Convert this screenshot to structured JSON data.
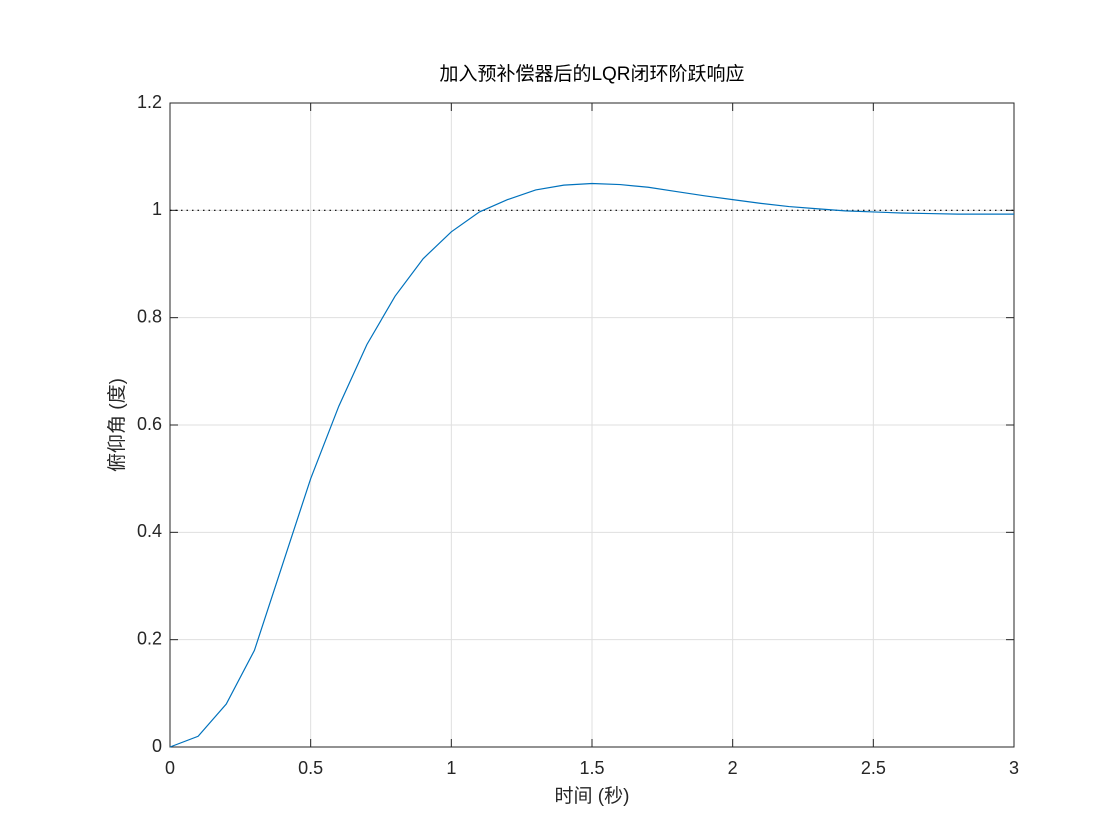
{
  "chart_data": {
    "type": "line",
    "title": "加入预补偿器后的LQR闭环阶跃响应",
    "x_label": "时间 (秒)",
    "y_label": "俯仰角 (度)",
    "x": [
      0,
      0.1,
      0.2,
      0.3,
      0.4,
      0.5,
      0.6,
      0.7,
      0.8,
      0.9,
      1.0,
      1.1,
      1.2,
      1.3,
      1.4,
      1.5,
      1.6,
      1.7,
      1.8,
      1.9,
      2.0,
      2.1,
      2.2,
      2.3,
      2.4,
      2.5,
      2.6,
      2.7,
      2.8,
      2.9,
      3.0
    ],
    "series": [
      {
        "color": "#0072bd",
        "values": [
          0,
          0.02,
          0.08,
          0.18,
          0.34,
          0.5,
          0.635,
          0.75,
          0.84,
          0.91,
          0.96,
          0.997,
          1.02,
          1.038,
          1.047,
          1.05,
          1.048,
          1.043,
          1.035,
          1.027,
          1.02,
          1.013,
          1.007,
          1.003,
          0.999,
          0.997,
          0.995,
          0.994,
          0.993,
          0.993,
          0.993
        ]
      }
    ],
    "reference_line": {
      "value": 1,
      "color": "#000000"
    },
    "xlim": [
      0,
      3
    ],
    "xticks": [
      0,
      0.5,
      1,
      1.5,
      2,
      2.5,
      3
    ],
    "ylim": [
      0,
      1.2
    ],
    "yticks": [
      0,
      0.2,
      0.4,
      0.6,
      0.8,
      1,
      1.2
    ],
    "grid": true
  }
}
